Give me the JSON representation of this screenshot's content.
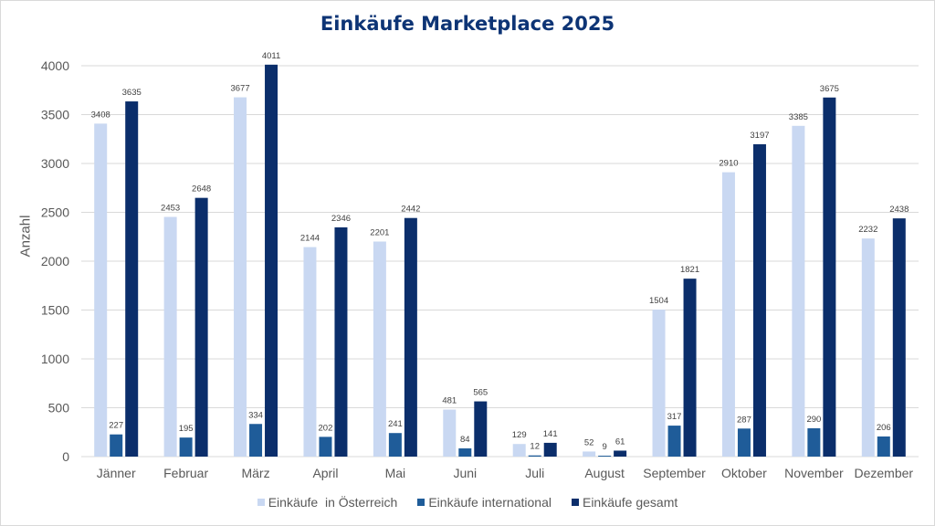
{
  "chart_data": {
    "type": "bar",
    "title": "Einkäufe Marketplace 2025",
    "xlabel": "",
    "ylabel": "Anzahl",
    "ylim": [
      0,
      4000
    ],
    "yticks": [
      0,
      500,
      1000,
      1500,
      2000,
      2500,
      3000,
      3500,
      4000
    ],
    "grid": true,
    "legend_position": "bottom",
    "categories": [
      "Jänner",
      "Februar",
      "März",
      "April",
      "Mai",
      "Juni",
      "Juli",
      "August",
      "September",
      "Oktober",
      "November",
      "Dezember"
    ],
    "series": [
      {
        "name": "Einkäufe  in Österreich",
        "color": "#c9d8f2",
        "values": [
          3408,
          2453,
          3677,
          2144,
          2201,
          481,
          129,
          52,
          1504,
          2910,
          3385,
          2232
        ]
      },
      {
        "name": "Einkäufe international",
        "color": "#1f5c99",
        "values": [
          227,
          195,
          334,
          202,
          241,
          84,
          12,
          9,
          317,
          287,
          290,
          206
        ]
      },
      {
        "name": "Einkäufe gesamt",
        "color": "#0b2e6b",
        "values": [
          3635,
          2648,
          4011,
          2346,
          2442,
          565,
          141,
          61,
          1821,
          3197,
          3675,
          2438
        ]
      }
    ]
  }
}
